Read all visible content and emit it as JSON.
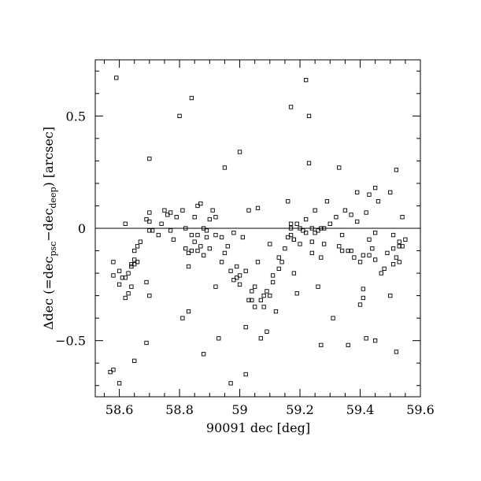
{
  "chart_data": {
    "type": "scatter",
    "title": "",
    "xlabel": "90091 dec [deg]",
    "ylabel_parts": {
      "prefix": "Δdec (=dec",
      "sub1": "psc",
      "mid": "−dec",
      "sub2": "deep",
      "suffix": ") [arcsec]"
    },
    "xlim": [
      58.52,
      59.6
    ],
    "ylim": [
      -0.75,
      0.75
    ],
    "x_major_ticks": [
      58.6,
      58.8,
      59,
      59.2,
      59.4,
      59.6
    ],
    "x_tick_labels": [
      "58.6",
      "58.8",
      "59",
      "59.2",
      "59.4",
      "59.6"
    ],
    "x_minor_step": 0.05,
    "y_major_ticks": [
      -0.5,
      0,
      0.5
    ],
    "y_tick_labels": [
      "−0.5",
      "0",
      "0.5"
    ],
    "y_minor_step": 0.1,
    "reference_line_y": 0,
    "grid": false,
    "points": [
      [
        58.59,
        0.67
      ],
      [
        58.57,
        -0.64
      ],
      [
        58.58,
        -0.63
      ],
      [
        58.6,
        -0.69
      ],
      [
        58.65,
        -0.59
      ],
      [
        58.58,
        -0.15
      ],
      [
        58.58,
        -0.21
      ],
      [
        58.6,
        -0.25
      ],
      [
        58.6,
        -0.19
      ],
      [
        58.61,
        -0.22
      ],
      [
        58.62,
        -0.22
      ],
      [
        58.62,
        -0.31
      ],
      [
        58.62,
        0.02
      ],
      [
        58.63,
        -0.29
      ],
      [
        58.63,
        -0.2
      ],
      [
        58.64,
        -0.16
      ],
      [
        58.64,
        -0.26
      ],
      [
        58.64,
        -0.17
      ],
      [
        58.65,
        -0.16
      ],
      [
        58.65,
        -0.14
      ],
      [
        58.65,
        -0.1
      ],
      [
        58.66,
        -0.08
      ],
      [
        58.66,
        -0.15
      ],
      [
        58.67,
        -0.06
      ],
      [
        58.69,
        0.04
      ],
      [
        58.69,
        -0.51
      ],
      [
        58.69,
        -0.24
      ],
      [
        58.7,
        -0.3
      ],
      [
        58.7,
        0.31
      ],
      [
        58.7,
        0.07
      ],
      [
        58.7,
        0.03
      ],
      [
        58.7,
        -0.01
      ],
      [
        58.71,
        -0.01
      ],
      [
        58.73,
        -0.03
      ],
      [
        58.74,
        0.02
      ],
      [
        58.75,
        0.08
      ],
      [
        58.76,
        0.06
      ],
      [
        58.77,
        0.07
      ],
      [
        58.77,
        -0.01
      ],
      [
        58.78,
        -0.05
      ],
      [
        58.79,
        0.05
      ],
      [
        58.8,
        0.5
      ],
      [
        58.81,
        0.08
      ],
      [
        58.81,
        -0.4
      ],
      [
        58.82,
        0.0
      ],
      [
        58.82,
        -0.09
      ],
      [
        58.83,
        -0.37
      ],
      [
        58.83,
        -0.17
      ],
      [
        58.83,
        -0.11
      ],
      [
        58.84,
        0.58
      ],
      [
        58.84,
        -0.03
      ],
      [
        58.84,
        -0.1
      ],
      [
        58.85,
        0.05
      ],
      [
        58.85,
        -0.06
      ],
      [
        58.86,
        0.1
      ],
      [
        58.86,
        -0.1
      ],
      [
        58.86,
        -0.03
      ],
      [
        58.87,
        0.11
      ],
      [
        58.87,
        -0.08
      ],
      [
        58.88,
        -0.56
      ],
      [
        58.88,
        -0.12
      ],
      [
        58.88,
        0.0
      ],
      [
        58.89,
        -0.01
      ],
      [
        58.89,
        -0.04
      ],
      [
        58.9,
        0.04
      ],
      [
        58.9,
        -0.09
      ],
      [
        58.91,
        0.08
      ],
      [
        58.92,
        -0.26
      ],
      [
        58.92,
        -0.03
      ],
      [
        58.92,
        0.05
      ],
      [
        58.93,
        -0.49
      ],
      [
        58.94,
        -0.04
      ],
      [
        58.94,
        -0.15
      ],
      [
        58.95,
        0.27
      ],
      [
        58.95,
        -0.11
      ],
      [
        58.96,
        -0.08
      ],
      [
        58.97,
        -0.69
      ],
      [
        58.97,
        -0.19
      ],
      [
        58.98,
        -0.02
      ],
      [
        58.98,
        -0.23
      ],
      [
        58.99,
        -0.22
      ],
      [
        58.99,
        -0.17
      ],
      [
        59.0,
        0.34
      ],
      [
        59.0,
        -0.25
      ],
      [
        59.0,
        -0.21
      ],
      [
        59.01,
        -0.04
      ],
      [
        59.02,
        -0.44
      ],
      [
        59.02,
        -0.65
      ],
      [
        59.02,
        -0.19
      ],
      [
        59.03,
        -0.32
      ],
      [
        59.03,
        0.08
      ],
      [
        59.04,
        -0.28
      ],
      [
        59.04,
        -0.32
      ],
      [
        59.05,
        -0.35
      ],
      [
        59.05,
        -0.26
      ],
      [
        59.06,
        -0.15
      ],
      [
        59.06,
        0.09
      ],
      [
        59.07,
        -0.49
      ],
      [
        59.07,
        -0.32
      ],
      [
        59.08,
        -0.3
      ],
      [
        59.08,
        -0.35
      ],
      [
        59.09,
        -0.28
      ],
      [
        59.09,
        -0.46
      ],
      [
        59.1,
        -0.07
      ],
      [
        59.1,
        -0.3
      ],
      [
        59.11,
        -0.21
      ],
      [
        59.11,
        -0.24
      ],
      [
        59.12,
        -0.37
      ],
      [
        59.13,
        -0.13
      ],
      [
        59.13,
        -0.18
      ],
      [
        59.14,
        -0.15
      ],
      [
        59.15,
        -0.09
      ],
      [
        59.16,
        0.12
      ],
      [
        59.16,
        -0.04
      ],
      [
        59.17,
        0.54
      ],
      [
        59.17,
        0.02
      ],
      [
        59.17,
        -0.03
      ],
      [
        59.17,
        0.0
      ],
      [
        59.18,
        -0.05
      ],
      [
        59.18,
        -0.2
      ],
      [
        59.18,
        -0.05
      ],
      [
        59.19,
        0.02
      ],
      [
        59.19,
        -0.29
      ],
      [
        59.2,
        0.0
      ],
      [
        59.2,
        -0.07
      ],
      [
        59.21,
        -0.01
      ],
      [
        59.22,
        0.66
      ],
      [
        59.22,
        0.04
      ],
      [
        59.22,
        -0.02
      ],
      [
        59.23,
        0.5
      ],
      [
        59.23,
        0.29
      ],
      [
        59.24,
        0.0
      ],
      [
        59.24,
        -0.06
      ],
      [
        59.24,
        -0.11
      ],
      [
        59.25,
        -0.02
      ],
      [
        59.25,
        0.08
      ],
      [
        59.26,
        -0.01
      ],
      [
        59.26,
        -0.26
      ],
      [
        59.27,
        0.0
      ],
      [
        59.27,
        -0.52
      ],
      [
        59.27,
        -0.13
      ],
      [
        59.28,
        -0.07
      ],
      [
        59.28,
        0.0
      ],
      [
        59.29,
        0.12
      ],
      [
        59.3,
        0.02
      ],
      [
        59.31,
        -0.4
      ],
      [
        59.32,
        0.05
      ],
      [
        59.33,
        0.27
      ],
      [
        59.33,
        -0.08
      ],
      [
        59.34,
        -0.1
      ],
      [
        59.34,
        -0.03
      ],
      [
        59.35,
        0.08
      ],
      [
        59.36,
        -0.1
      ],
      [
        59.36,
        -0.52
      ],
      [
        59.37,
        0.06
      ],
      [
        59.37,
        -0.1
      ],
      [
        59.38,
        -0.13
      ],
      [
        59.39,
        0.16
      ],
      [
        59.39,
        0.03
      ],
      [
        59.4,
        -0.34
      ],
      [
        59.4,
        -0.15
      ],
      [
        59.41,
        -0.31
      ],
      [
        59.41,
        -0.27
      ],
      [
        59.41,
        -0.12
      ],
      [
        59.42,
        0.07
      ],
      [
        59.42,
        -0.49
      ],
      [
        59.43,
        0.15
      ],
      [
        59.43,
        -0.12
      ],
      [
        59.43,
        -0.05
      ],
      [
        59.44,
        -0.09
      ],
      [
        59.45,
        0.18
      ],
      [
        59.45,
        -0.5
      ],
      [
        59.45,
        -0.02
      ],
      [
        59.45,
        -0.14
      ],
      [
        59.46,
        0.12
      ],
      [
        59.47,
        -0.2
      ],
      [
        59.48,
        -0.18
      ],
      [
        59.49,
        -0.11
      ],
      [
        59.5,
        0.16
      ],
      [
        59.5,
        -0.3
      ],
      [
        59.51,
        -0.03
      ],
      [
        59.51,
        -0.09
      ],
      [
        59.51,
        -0.16
      ],
      [
        59.52,
        0.26
      ],
      [
        59.52,
        -0.55
      ],
      [
        59.52,
        -0.13
      ],
      [
        59.53,
        -0.06
      ],
      [
        59.53,
        -0.08
      ],
      [
        59.53,
        -0.15
      ],
      [
        59.54,
        0.05
      ],
      [
        59.54,
        -0.08
      ],
      [
        59.55,
        -0.05
      ]
    ]
  }
}
